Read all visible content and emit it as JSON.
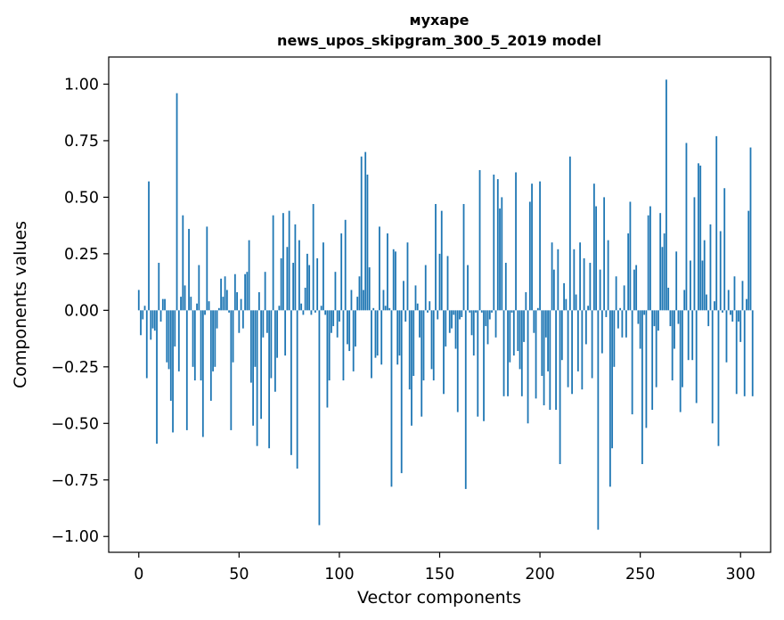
{
  "chart_data": {
    "type": "bar",
    "title": [
      "мухаре",
      "news_upos_skipgram_300_5_2019 model"
    ],
    "xlabel": "Vector components",
    "ylabel": "Components values",
    "xlim": [
      -15,
      315
    ],
    "ylim": [
      -1.07,
      1.12
    ],
    "xticks": [
      0,
      50,
      100,
      150,
      200,
      250,
      300
    ],
    "xtick_labels": [
      "0",
      "50",
      "100",
      "150",
      "200",
      "250",
      "300"
    ],
    "yticks": [
      1.0,
      0.75,
      0.5,
      0.25,
      0.0,
      -0.25,
      -0.5,
      -0.75,
      -1.0
    ],
    "ytick_labels": [
      "1.00",
      "0.75",
      "0.50",
      "0.25",
      "0.00",
      "−0.25",
      "−0.50",
      "−0.75",
      "−1.00"
    ],
    "bar_color": "#1f77b4",
    "values": [
      0.09,
      -0.11,
      -0.04,
      0.02,
      -0.3,
      0.57,
      -0.13,
      -0.08,
      -0.09,
      -0.59,
      0.21,
      -0.05,
      0.05,
      0.05,
      -0.23,
      -0.26,
      -0.4,
      -0.54,
      -0.16,
      0.96,
      -0.27,
      0.06,
      0.42,
      0.11,
      -0.53,
      0.36,
      0.06,
      -0.25,
      -0.31,
      0.03,
      0.2,
      -0.31,
      -0.56,
      -0.02,
      0.37,
      0.04,
      -0.4,
      -0.27,
      -0.25,
      -0.08,
      0.01,
      0.14,
      0.06,
      0.15,
      0.09,
      -0.01,
      -0.53,
      -0.23,
      0.16,
      0.08,
      -0.1,
      0.05,
      -0.08,
      0.16,
      0.17,
      0.31,
      -0.32,
      -0.51,
      -0.25,
      -0.6,
      0.08,
      -0.48,
      -0.12,
      0.17,
      -0.1,
      -0.61,
      -0.3,
      0.42,
      -0.36,
      -0.21,
      0.02,
      0.23,
      0.43,
      -0.2,
      0.28,
      0.44,
      -0.64,
      0.21,
      0.38,
      -0.7,
      0.31,
      0.03,
      -0.02,
      0.1,
      0.25,
      0.2,
      -0.02,
      0.47,
      -0.01,
      0.23,
      -0.95,
      0.02,
      0.3,
      -0.02,
      -0.43,
      -0.31,
      -0.1,
      -0.07,
      0.17,
      -0.12,
      -0.05,
      0.34,
      -0.31,
      0.4,
      -0.15,
      -0.18,
      0.09,
      -0.27,
      -0.16,
      0.06,
      0.15,
      0.68,
      0.09,
      0.7,
      0.6,
      0.19,
      -0.3,
      0.01,
      -0.21,
      -0.2,
      0.37,
      -0.24,
      0.09,
      0.02,
      0.34,
      0.01,
      -0.78,
      0.27,
      0.26,
      -0.24,
      -0.2,
      -0.72,
      0.13,
      -0.05,
      0.3,
      -0.35,
      -0.51,
      -0.29,
      0.11,
      0.03,
      -0.12,
      -0.47,
      -0.31,
      0.2,
      -0.01,
      0.04,
      -0.26,
      -0.31,
      0.47,
      -0.04,
      0.25,
      0.44,
      -0.37,
      -0.16,
      0.24,
      -0.1,
      -0.08,
      -0.02,
      -0.17,
      -0.45,
      -0.04,
      -0.03,
      0.47,
      -0.79,
      0.2,
      -0.01,
      -0.11,
      -0.2,
      -0.01,
      -0.47,
      0.62,
      -0.01,
      -0.49,
      -0.07,
      -0.15,
      -0.04,
      -0.01,
      0.6,
      -0.12,
      0.58,
      0.45,
      0.5,
      -0.38,
      0.21,
      -0.38,
      -0.23,
      -0.01,
      -0.2,
      0.61,
      -0.18,
      -0.26,
      -0.38,
      -0.14,
      0.08,
      -0.5,
      0.48,
      0.56,
      -0.1,
      -0.39,
      0.01,
      0.57,
      -0.29,
      -0.42,
      -0.12,
      -0.27,
      -0.44,
      0.3,
      0.18,
      -0.44,
      0.27,
      -0.68,
      -0.22,
      0.12,
      0.05,
      -0.34,
      0.68,
      -0.37,
      0.27,
      0.07,
      -0.27,
      0.3,
      -0.35,
      0.23,
      -0.15,
      0.02,
      0.21,
      -0.3,
      0.56,
      0.46,
      -0.97,
      0.18,
      -0.19,
      0.5,
      -0.03,
      0.31,
      -0.78,
      -0.61,
      -0.25,
      0.15,
      -0.08,
      0.01,
      -0.12,
      0.11,
      -0.12,
      0.34,
      0.48,
      -0.46,
      0.18,
      0.2,
      -0.06,
      -0.17,
      -0.68,
      -0.02,
      -0.52,
      0.42,
      0.46,
      -0.44,
      -0.07,
      -0.34,
      -0.09,
      0.43,
      0.28,
      0.34,
      1.02,
      0.1,
      -0.07,
      -0.31,
      -0.17,
      0.26,
      -0.06,
      -0.45,
      -0.34,
      0.09,
      0.74,
      -0.22,
      0.22,
      -0.22,
      0.5,
      -0.41,
      0.65,
      0.64,
      0.22,
      0.31,
      0.07,
      -0.07,
      0.38,
      -0.5,
      0.04,
      0.77,
      -0.6,
      0.35,
      -0.01,
      0.54,
      -0.23,
      0.09,
      -0.02,
      -0.05,
      0.15,
      -0.37,
      -0.05,
      -0.14,
      0.13,
      -0.38,
      0.05,
      0.44,
      0.72,
      -0.38
    ]
  }
}
